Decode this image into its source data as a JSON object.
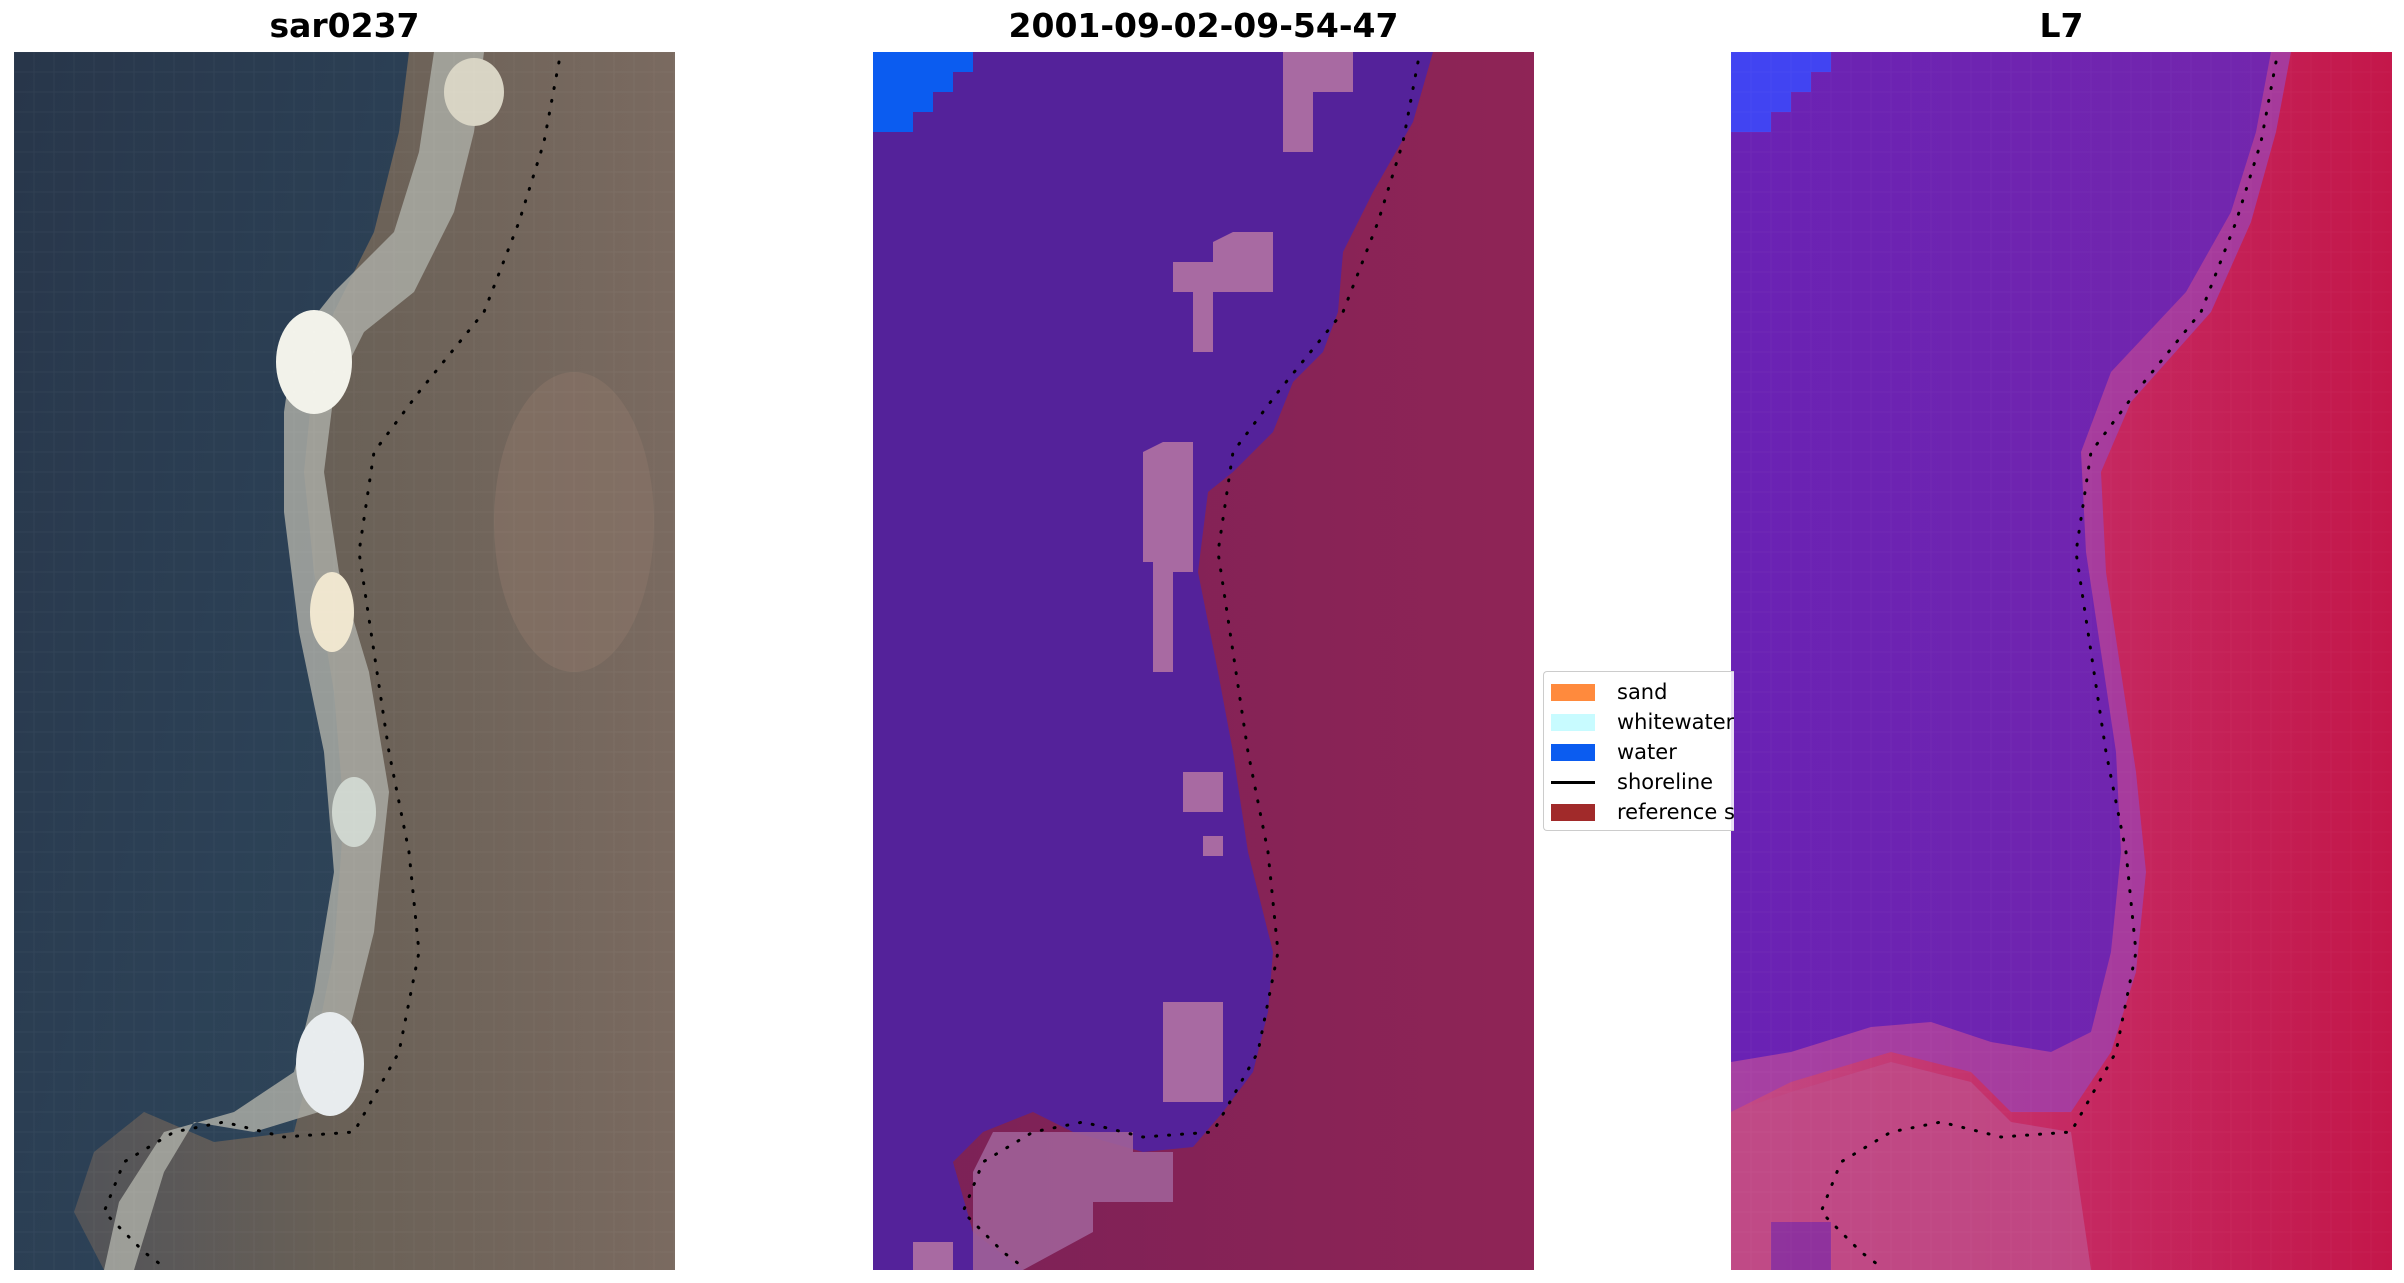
{
  "panels": [
    {
      "title": "sar0237"
    },
    {
      "title": "2001-09-02-09-54-47"
    },
    {
      "title": "L7"
    }
  ],
  "legend": {
    "items": [
      {
        "label": "sand",
        "color": "#ff8a3d",
        "kind": "patch"
      },
      {
        "label": "whitewater",
        "color": "#c8fbff",
        "kind": "patch"
      },
      {
        "label": "water",
        "color": "#0b5cf0",
        "kind": "patch"
      },
      {
        "label": "shoreline",
        "color": "#000000",
        "kind": "line"
      },
      {
        "label": "reference sl",
        "color": "#a12a2a",
        "kind": "patch"
      }
    ]
  },
  "colors": {
    "rgb_water": "#2c3d52",
    "rgb_land": "#6f6759",
    "rgb_beach": "#d8d4c4",
    "class_water": "#54229a",
    "class_land": "#8b2457",
    "class_sand": "#a86aa2",
    "class_ocean_blue": "#0b5cf0",
    "index_water": "#6a1fb3",
    "index_land": "#c41e4e",
    "index_transition": "#c04a86",
    "index_blue": "#4144f2"
  }
}
